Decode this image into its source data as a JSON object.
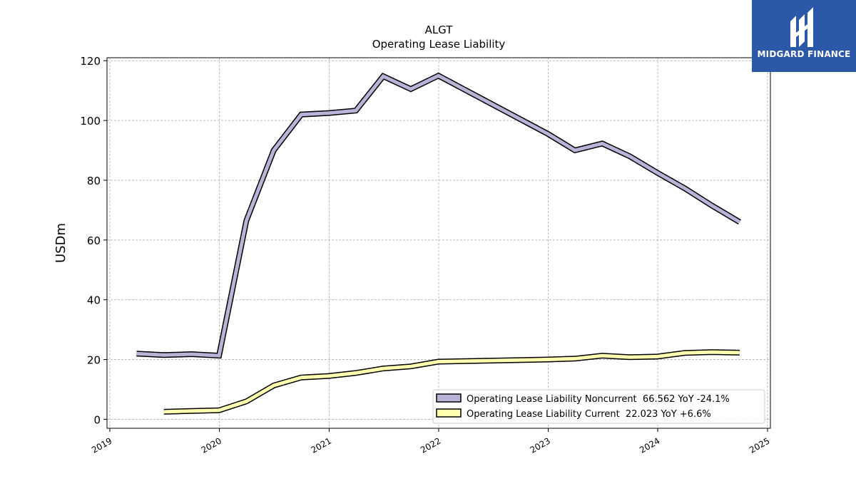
{
  "chart_data": {
    "type": "line",
    "title": "ALGT",
    "subtitle": "Operating Lease Liability",
    "ylabel": "USDm",
    "xlabel": "",
    "xlim": [
      "2019-01-01",
      "2025-01-01"
    ],
    "ylim": [
      -3,
      121
    ],
    "yticks": [
      0,
      20,
      40,
      60,
      80,
      100,
      120
    ],
    "xticks": [
      "2019",
      "2020",
      "2021",
      "2022",
      "2023",
      "2024",
      "2025"
    ],
    "grid": true,
    "legend_position": "lower-right",
    "series": [
      {
        "name": "Operating Lease Liability Noncurrent  66.562 YoY -24.1%",
        "color": "#b8b4d8",
        "points": [
          [
            "2019-03-31",
            22.0
          ],
          [
            "2019-06-30",
            21.5
          ],
          [
            "2019-09-30",
            21.8
          ],
          [
            "2019-12-31",
            21.3
          ],
          [
            "2020-03-31",
            66.5
          ],
          [
            "2020-06-30",
            90.0
          ],
          [
            "2020-09-30",
            102.0
          ],
          [
            "2020-12-31",
            102.5
          ],
          [
            "2021-03-31",
            103.3
          ],
          [
            "2021-06-30",
            114.8
          ],
          [
            "2021-09-30",
            110.5
          ],
          [
            "2021-12-31",
            115.0
          ],
          [
            "2022-12-31",
            95.5
          ],
          [
            "2023-03-31",
            90.0
          ],
          [
            "2023-06-30",
            92.3
          ],
          [
            "2023-09-30",
            88.0
          ],
          [
            "2023-12-31",
            82.5
          ],
          [
            "2024-03-31",
            77.3
          ],
          [
            "2024-06-30",
            71.5
          ],
          [
            "2024-09-30",
            66.0
          ]
        ]
      },
      {
        "name": "Operating Lease Liability Current  22.023 YoY +6.6%",
        "color": "#ffffb0",
        "points": [
          [
            "2019-06-30",
            2.5
          ],
          [
            "2019-09-30",
            2.8
          ],
          [
            "2019-12-31",
            3.0
          ],
          [
            "2020-03-31",
            6.0
          ],
          [
            "2020-06-30",
            11.3
          ],
          [
            "2020-09-30",
            14.0
          ],
          [
            "2020-12-31",
            14.5
          ],
          [
            "2021-03-31",
            15.5
          ],
          [
            "2021-06-30",
            17.0
          ],
          [
            "2021-09-30",
            17.7
          ],
          [
            "2021-12-31",
            19.3
          ],
          [
            "2022-12-31",
            20.0
          ],
          [
            "2023-03-31",
            20.3
          ],
          [
            "2023-06-30",
            21.3
          ],
          [
            "2023-09-30",
            20.8
          ],
          [
            "2023-12-31",
            21.0
          ],
          [
            "2024-03-31",
            22.2
          ],
          [
            "2024-06-30",
            22.5
          ],
          [
            "2024-09-30",
            22.3
          ]
        ]
      }
    ]
  },
  "logo": {
    "text": "MIDGARD FINANCE"
  }
}
